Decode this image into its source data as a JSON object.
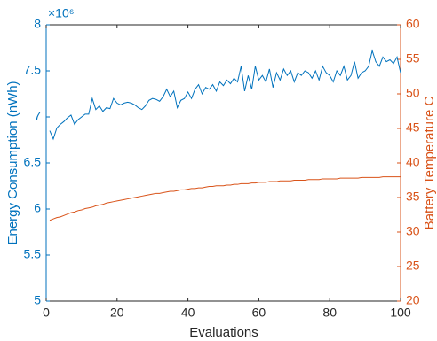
{
  "chart_data": {
    "type": "line",
    "xlabel": "Evaluations",
    "ylabel": "Energy Consumption (nWh)",
    "y2label": "Battery Temperature C",
    "multiplier": "×10⁶",
    "x": [
      1,
      2,
      3,
      4,
      5,
      6,
      7,
      8,
      9,
      10,
      11,
      12,
      13,
      14,
      15,
      16,
      17,
      18,
      19,
      20,
      21,
      22,
      23,
      24,
      25,
      26,
      27,
      28,
      29,
      30,
      31,
      32,
      33,
      34,
      35,
      36,
      37,
      38,
      39,
      40,
      41,
      42,
      43,
      44,
      45,
      46,
      47,
      48,
      49,
      50,
      51,
      52,
      53,
      54,
      55,
      56,
      57,
      58,
      59,
      60,
      61,
      62,
      63,
      64,
      65,
      66,
      67,
      68,
      69,
      70,
      71,
      72,
      73,
      74,
      75,
      76,
      77,
      78,
      79,
      80,
      81,
      82,
      83,
      84,
      85,
      86,
      87,
      88,
      89,
      90,
      91,
      92,
      93,
      94,
      95,
      96,
      97,
      98,
      99,
      100
    ],
    "series": [
      {
        "name": "Energy Consumption (nWh)",
        "color": "#0072BD",
        "axis": "y",
        "values": [
          6.85,
          6.76,
          6.88,
          6.92,
          6.95,
          6.99,
          7.02,
          6.92,
          6.97,
          7.0,
          7.03,
          7.03,
          7.2,
          7.08,
          7.12,
          7.06,
          7.1,
          7.09,
          7.2,
          7.15,
          7.13,
          7.15,
          7.16,
          7.15,
          7.13,
          7.1,
          7.08,
          7.12,
          7.18,
          7.2,
          7.19,
          7.17,
          7.22,
          7.3,
          7.22,
          7.28,
          7.1,
          7.18,
          7.2,
          7.27,
          7.2,
          7.3,
          7.35,
          7.25,
          7.32,
          7.3,
          7.35,
          7.28,
          7.38,
          7.34,
          7.4,
          7.36,
          7.42,
          7.38,
          7.55,
          7.28,
          7.45,
          7.3,
          7.55,
          7.4,
          7.45,
          7.38,
          7.52,
          7.32,
          7.48,
          7.4,
          7.52,
          7.45,
          7.5,
          7.38,
          7.48,
          7.45,
          7.5,
          7.48,
          7.42,
          7.5,
          7.4,
          7.55,
          7.48,
          7.45,
          7.38,
          7.5,
          7.45,
          7.55,
          7.4,
          7.45,
          7.6,
          7.42,
          7.48,
          7.5,
          7.55,
          7.72,
          7.6,
          7.55,
          7.65,
          7.6,
          7.62,
          7.58,
          7.65,
          7.48
        ]
      },
      {
        "name": "Battery Temperature C",
        "color": "#D95319",
        "axis": "y2",
        "values": [
          31.7,
          31.9,
          32.1,
          32.2,
          32.4,
          32.6,
          32.8,
          32.9,
          33.1,
          33.2,
          33.4,
          33.5,
          33.6,
          33.8,
          33.9,
          34.0,
          34.2,
          34.3,
          34.4,
          34.5,
          34.6,
          34.7,
          34.8,
          34.9,
          35.0,
          35.1,
          35.2,
          35.3,
          35.4,
          35.5,
          35.6,
          35.6,
          35.7,
          35.8,
          35.9,
          35.9,
          36.0,
          36.1,
          36.1,
          36.2,
          36.3,
          36.3,
          36.4,
          36.4,
          36.5,
          36.6,
          36.6,
          36.7,
          36.7,
          36.7,
          36.8,
          36.8,
          36.9,
          36.9,
          37.0,
          37.0,
          37.0,
          37.1,
          37.1,
          37.2,
          37.2,
          37.2,
          37.3,
          37.3,
          37.3,
          37.4,
          37.4,
          37.4,
          37.4,
          37.5,
          37.5,
          37.5,
          37.5,
          37.6,
          37.6,
          37.6,
          37.6,
          37.7,
          37.7,
          37.7,
          37.7,
          37.7,
          37.8,
          37.8,
          37.8,
          37.8,
          37.8,
          37.8,
          37.9,
          37.9,
          37.9,
          37.9,
          37.9,
          37.9,
          38.0,
          38.0,
          38.0,
          38.0,
          38.0,
          38.0
        ]
      }
    ],
    "xlim": [
      0,
      100
    ],
    "xticks": [
      0,
      20,
      40,
      60,
      80,
      100
    ],
    "ylim": [
      5,
      8
    ],
    "yticks": [
      5,
      5.5,
      6,
      6.5,
      7,
      7.5,
      8
    ],
    "y2lim": [
      20,
      60
    ],
    "y2ticks": [
      20,
      25,
      30,
      35,
      40,
      45,
      50,
      55,
      60
    ]
  }
}
